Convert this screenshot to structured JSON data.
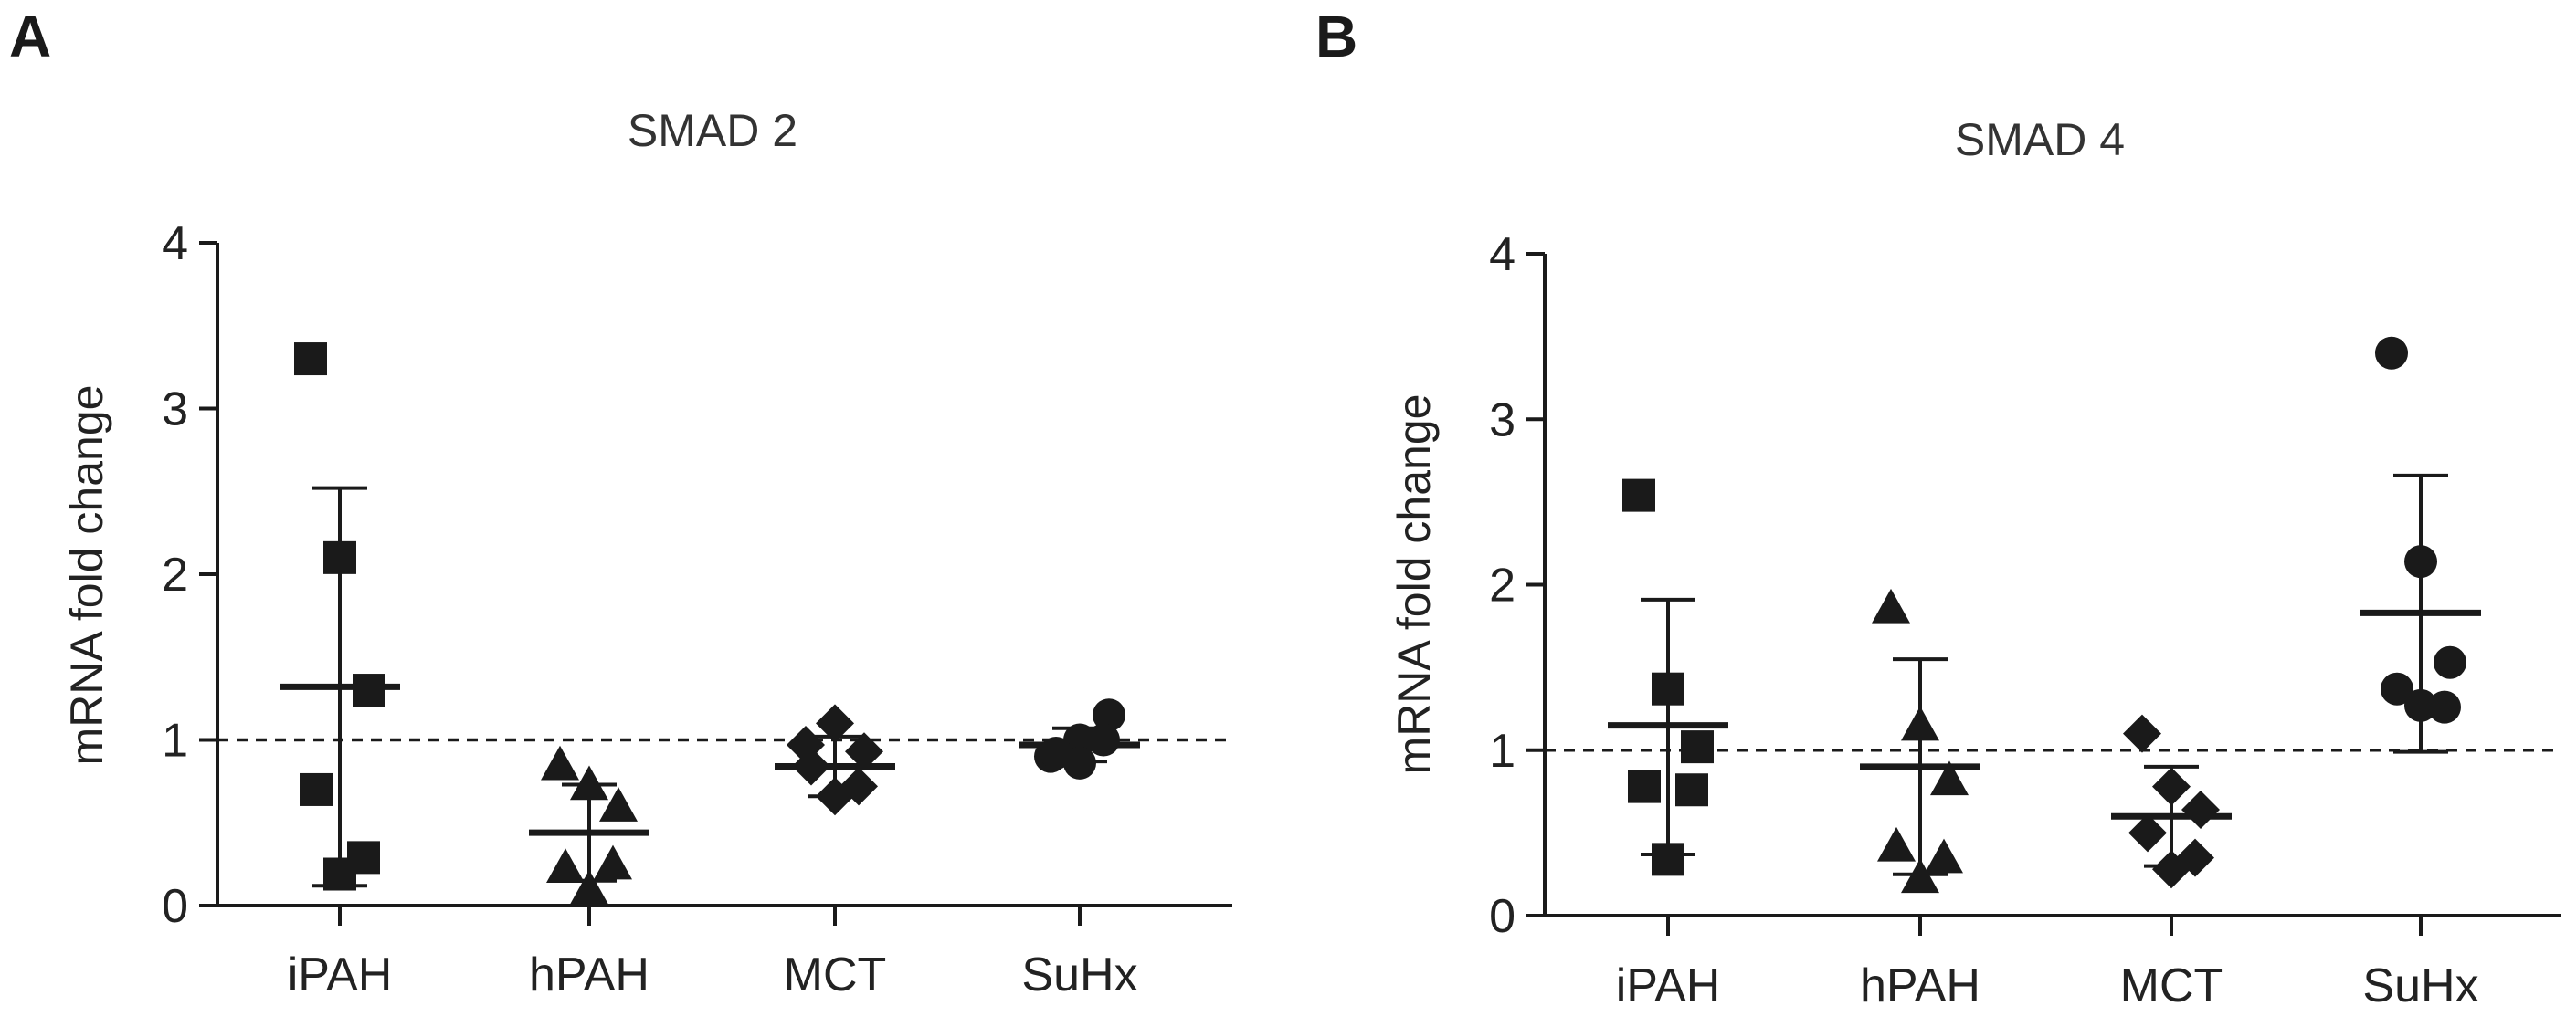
{
  "figure": {
    "panels": [
      {
        "letter": "A"
      },
      {
        "letter": "B"
      }
    ]
  },
  "chart_data": [
    {
      "type": "scatter",
      "panel": "A",
      "title": "SMAD 2",
      "xlabel": "",
      "ylabel": "mRNA fold change",
      "ylim": [
        0,
        4
      ],
      "yticks": [
        "0",
        "1",
        "2",
        "3",
        "4"
      ],
      "categories": [
        "iPAH",
        "hPAH",
        "MCT",
        "SuHx"
      ],
      "reference_line": 1,
      "groups": [
        {
          "category": "iPAH",
          "marker": "square",
          "points": [
            3.3,
            2.1,
            1.3,
            0.7,
            0.29,
            0.19
          ],
          "mean": 1.32,
          "error_upper": 2.52,
          "error_lower": 0.12
        },
        {
          "category": "hPAH",
          "marker": "triangle",
          "points": [
            0.85,
            0.73,
            0.6,
            0.23,
            0.25,
            0.1
          ],
          "mean": 0.44,
          "error_upper": 0.73,
          "error_lower": 0.15
        },
        {
          "category": "MCT",
          "marker": "diamond",
          "points": [
            0.97,
            1.1,
            0.93,
            0.84,
            0.72,
            0.66
          ],
          "mean": 0.84,
          "error_upper": 1.02,
          "error_lower": 0.66
        },
        {
          "category": "SuHx",
          "marker": "circle",
          "points": [
            0.9,
            1.0,
            1.15,
            0.92,
            1.0,
            0.86
          ],
          "mean": 0.97,
          "error_upper": 1.07,
          "error_lower": 0.87
        }
      ]
    },
    {
      "type": "scatter",
      "panel": "B",
      "title": "SMAD 4",
      "xlabel": "",
      "ylabel": "mRNA fold change",
      "ylim": [
        0,
        4
      ],
      "yticks": [
        "0",
        "1",
        "2",
        "3",
        "4"
      ],
      "categories": [
        "iPAH",
        "hPAH",
        "MCT",
        "SuHx"
      ],
      "reference_line": 1,
      "groups": [
        {
          "category": "iPAH",
          "marker": "square",
          "points": [
            2.54,
            1.37,
            1.02,
            0.78,
            0.76,
            0.34
          ],
          "mean": 1.15,
          "error_upper": 1.91,
          "error_lower": 0.37
        },
        {
          "category": "hPAH",
          "marker": "triangle",
          "points": [
            1.86,
            1.15,
            0.82,
            0.42,
            0.35,
            0.23
          ],
          "mean": 0.9,
          "error_upper": 1.55,
          "error_lower": 0.25
        },
        {
          "category": "MCT",
          "marker": "diamond",
          "points": [
            1.1,
            0.78,
            0.64,
            0.5,
            0.35,
            0.28
          ],
          "mean": 0.6,
          "error_upper": 0.9,
          "error_lower": 0.3
        },
        {
          "category": "SuHx",
          "marker": "circle",
          "points": [
            3.4,
            2.14,
            1.53,
            1.37,
            1.26,
            1.27
          ],
          "mean": 1.83,
          "error_upper": 2.66,
          "error_lower": 0.99
        }
      ]
    }
  ]
}
